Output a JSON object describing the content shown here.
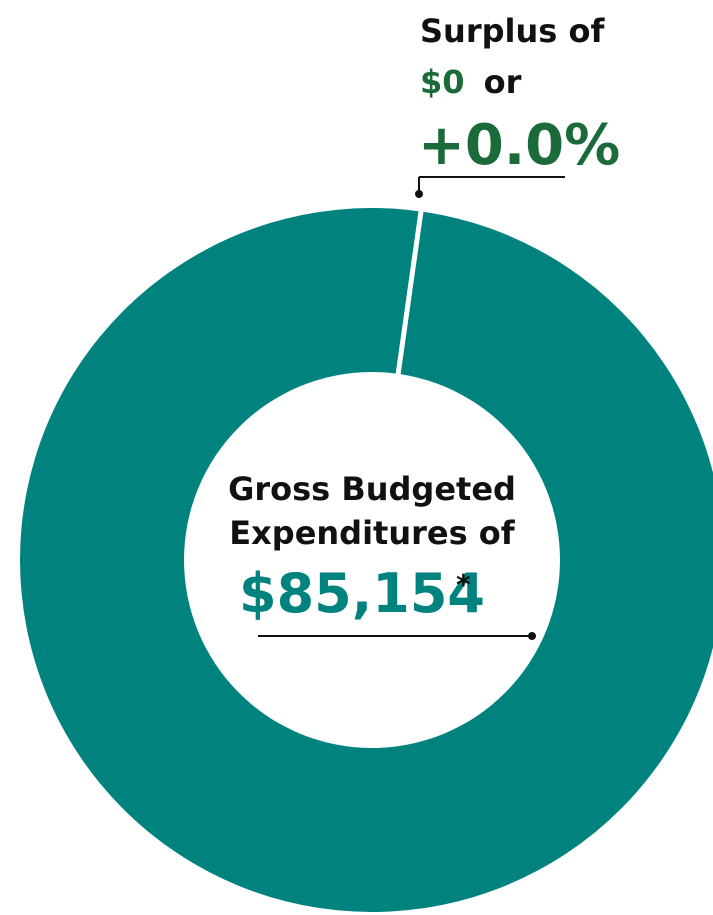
{
  "chart_data": {
    "type": "pie",
    "slices": [
      {
        "label": "Surplus",
        "value": 0
      },
      {
        "label": "Gross Budgeted Expenditures",
        "value": 85154
      }
    ],
    "colors": {
      "expenditures": "#00827f",
      "surplus_text": "#1b6a3a",
      "label_text": "#111111",
      "value_text": "#00827f"
    }
  },
  "surplus_callout": {
    "line1": "Surplus of",
    "amount": "$0",
    "connector": "or",
    "percent": "+0.0%"
  },
  "center_label": {
    "line1": "Gross Budgeted",
    "line2": "Expenditures of",
    "value": "$85,154",
    "asterisk": "*"
  }
}
